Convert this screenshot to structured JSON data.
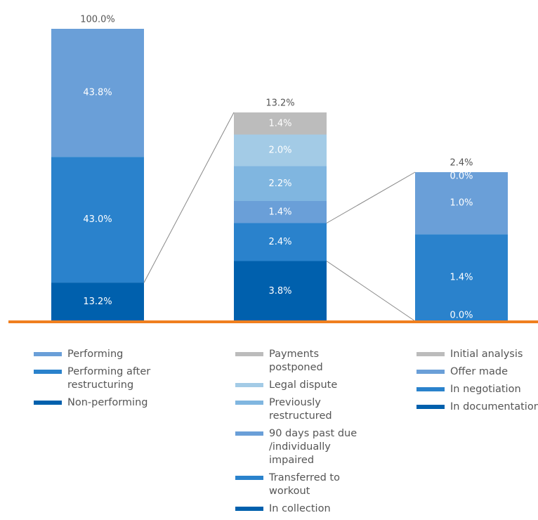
{
  "chart_data": {
    "type": "bar",
    "stacked": true,
    "bars": [
      {
        "total": 100,
        "total_label": "100.0%",
        "names": [
          "Performing",
          "Performing after restructuring",
          "Non-performing"
        ],
        "colors": [
          "#6a9fd8",
          "#2a82cc",
          "#0060ad"
        ],
        "values": [
          43.8,
          43.0,
          13.2
        ],
        "value_labels": [
          "43.8%",
          "43.0%",
          "13.2%"
        ]
      },
      {
        "total": 13.2,
        "total_label": "13.2%",
        "names": [
          "Payments postponed",
          "Legal dispute",
          "Previously restructured",
          "90 days past due\n/individually impaired",
          "Transferred to workout",
          "In collection"
        ],
        "colors": [
          "#bcbcbc",
          "#a3cbe6",
          "#80b6e0",
          "#6a9fd8",
          "#2a82cc",
          "#0060ad"
        ],
        "values": [
          1.4,
          2.0,
          2.2,
          1.4,
          2.4,
          3.8
        ],
        "value_labels": [
          "1.4%",
          "2.0%",
          "2.2%",
          "1.4%",
          "2.4%",
          "3.8%"
        ]
      },
      {
        "total": 2.4,
        "total_label": "2.4%",
        "names": [
          "Initial analysis",
          "Offer made",
          "In negotiation",
          "In documentation"
        ],
        "colors": [
          "#bcbcbc",
          "#6a9fd8",
          "#2a82cc",
          "#0060ad"
        ],
        "values": [
          0.0,
          1.0,
          1.4,
          0.0
        ],
        "value_labels": [
          "0.0%",
          "1.0%",
          "1.4%",
          "0.0%"
        ]
      }
    ],
    "baseline_color": "#f07f1f"
  }
}
